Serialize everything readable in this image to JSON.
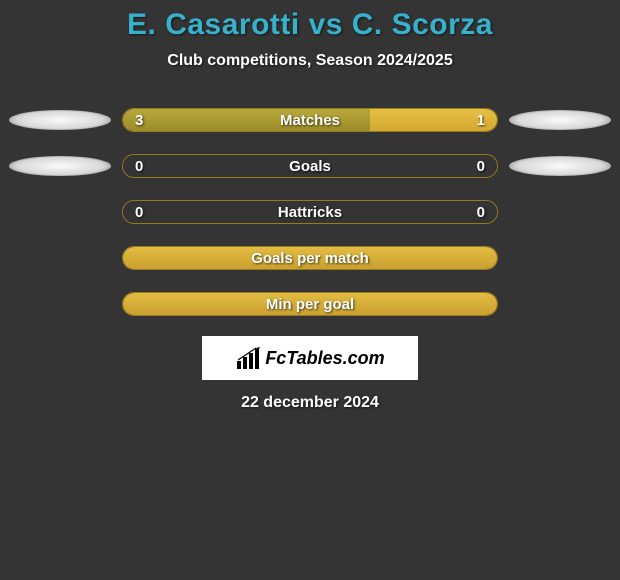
{
  "title": "E. Casarotti vs C. Scorza",
  "subtitle": "Club competitions, Season 2024/2025",
  "date": "22 december 2024",
  "logo_text": "FcTables.com",
  "colors": {
    "background": "#343434",
    "title": "#37b1cc",
    "text": "#ffffff",
    "bar_left": "#9c8c2a",
    "bar_right": "#d4a832",
    "bar_full": "#caa030",
    "bar_border": "#a08620"
  },
  "rows": [
    {
      "label": "Matches",
      "left_val": "3",
      "right_val": "1",
      "left_pct": 66,
      "right_pct": 34,
      "shadow_left": true,
      "shadow_right": true,
      "mode": "split"
    },
    {
      "label": "Goals",
      "left_val": "0",
      "right_val": "0",
      "left_pct": 0,
      "right_pct": 0,
      "shadow_left": true,
      "shadow_right": true,
      "mode": "empty"
    },
    {
      "label": "Hattricks",
      "left_val": "0",
      "right_val": "0",
      "left_pct": 0,
      "right_pct": 0,
      "shadow_left": false,
      "shadow_right": false,
      "mode": "empty"
    },
    {
      "label": "Goals per match",
      "left_val": "",
      "right_val": "",
      "left_pct": 100,
      "right_pct": 0,
      "shadow_left": false,
      "shadow_right": false,
      "mode": "full"
    },
    {
      "label": "Min per goal",
      "left_val": "",
      "right_val": "",
      "left_pct": 100,
      "right_pct": 0,
      "shadow_left": false,
      "shadow_right": false,
      "mode": "full"
    }
  ]
}
